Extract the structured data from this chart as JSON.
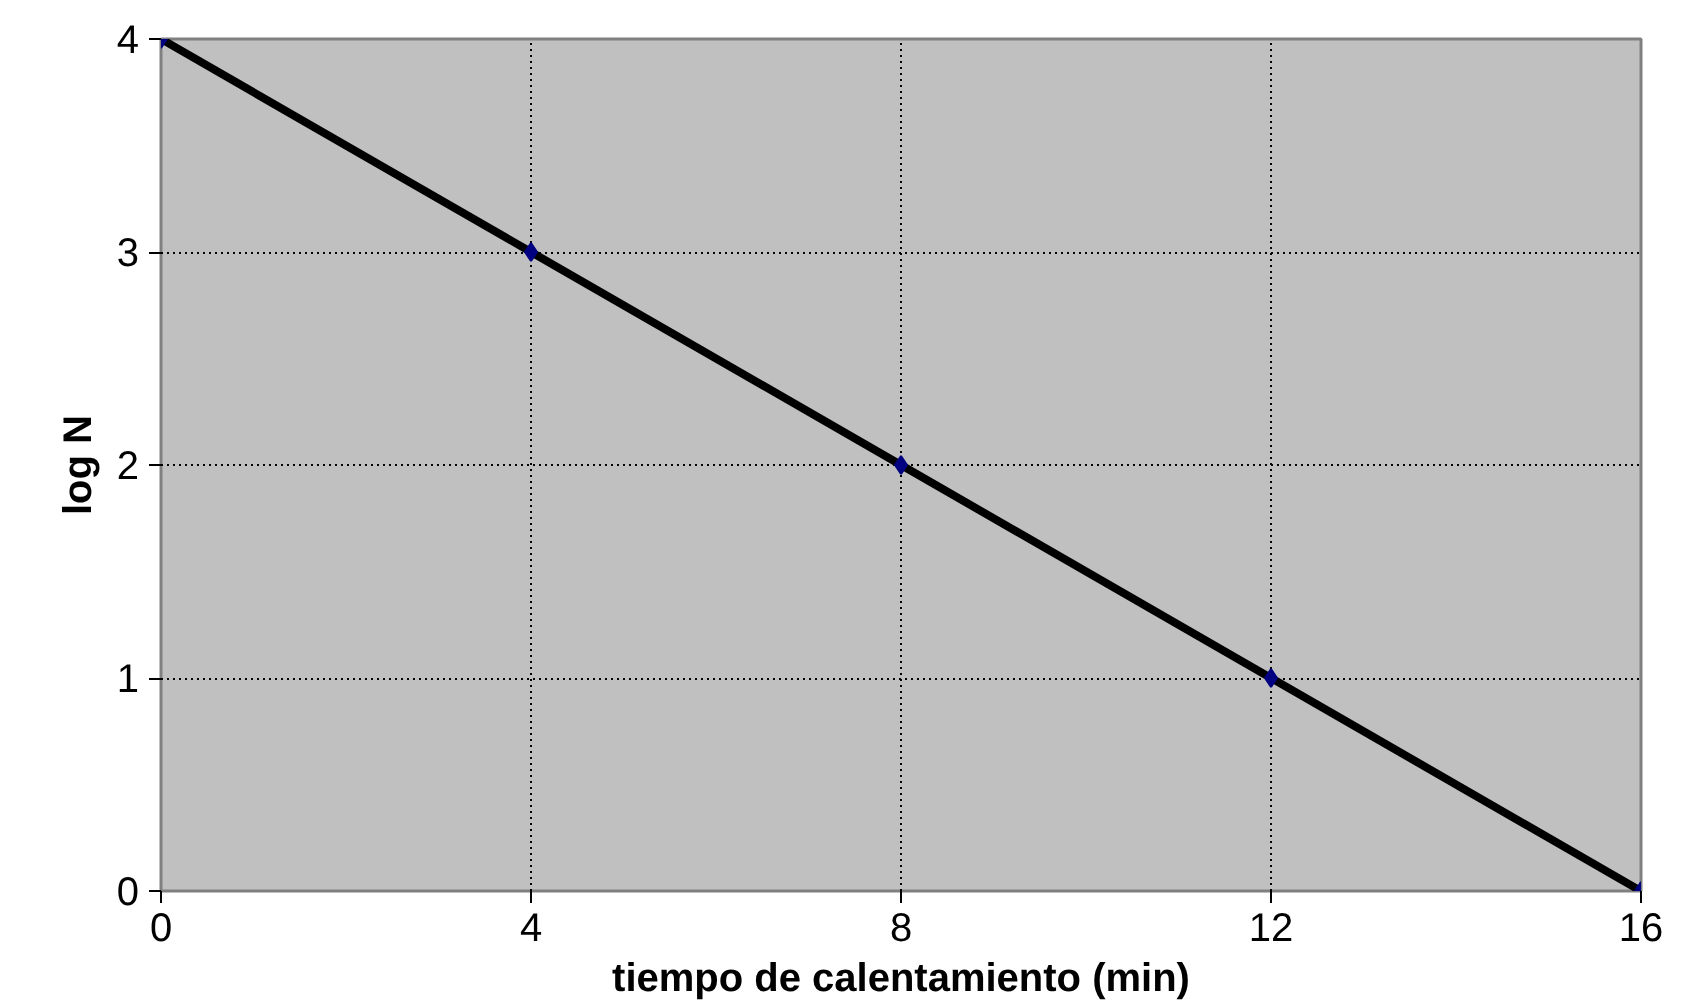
{
  "chart_data": {
    "type": "line",
    "xlabel": "tiempo de calentamiento (min)",
    "ylabel": "log N",
    "x": [
      0,
      4,
      8,
      12,
      16
    ],
    "series": [
      {
        "color": "#000000",
        "values": [
          4,
          3,
          2,
          1,
          0
        ]
      }
    ],
    "xlim": [
      0,
      16
    ],
    "ylim": [
      0,
      4
    ],
    "xticks": [
      0,
      4,
      8,
      12,
      16
    ],
    "yticks": [
      0,
      1,
      2,
      3,
      4
    ],
    "grid": true,
    "marker": "diamond",
    "line_style": "solid"
  }
}
